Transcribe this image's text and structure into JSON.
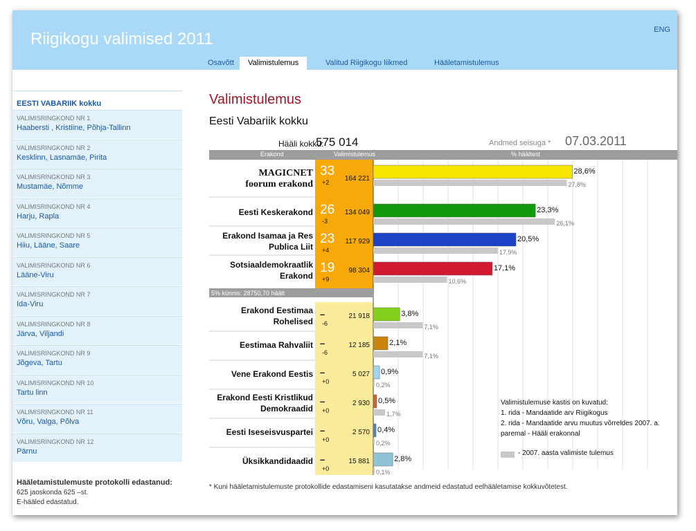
{
  "header": {
    "title": "Riigikogu valimised 2011",
    "lang_link": "ENG",
    "tabs": [
      "Osavõtt",
      "Valimistulemus",
      "Valitud Riigikogu liikmed",
      "Hääletamistulemus"
    ]
  },
  "sidebar": {
    "items": [
      {
        "sub": "",
        "name": "EESTI VABARIIK kokku"
      },
      {
        "sub": "VALIMISRINGKOND NR 1",
        "name": "Haabersti , Kristiine, Põhja-Tallinn"
      },
      {
        "sub": "VALIMISRINGKOND NR 2",
        "name": "Kesklinn, Lasnamäe, Pirita"
      },
      {
        "sub": "VALIMISRINGKOND NR 3",
        "name": "Mustamäe, Nõmme"
      },
      {
        "sub": "VALIMISRINGKOND NR 4",
        "name": "Harju, Rapla"
      },
      {
        "sub": "VALIMISRINGKOND NR 5",
        "name": "Hiiu, Lääne, Saare"
      },
      {
        "sub": "VALIMISRINGKOND NR 6",
        "name": "Lääne-Viru"
      },
      {
        "sub": "VALIMISRINGKOND NR 7",
        "name": "Ida-Viru"
      },
      {
        "sub": "VALIMISRINGKOND NR 8",
        "name": "Järva, Viljandi"
      },
      {
        "sub": "VALIMISRINGKOND NR 9",
        "name": "Jõgeva, Tartu"
      },
      {
        "sub": "VALIMISRINGKOND NR 10",
        "name": "Tartu linn"
      },
      {
        "sub": "VALIMISRINGKOND NR 11",
        "name": "Võru, Valga, Põlva"
      },
      {
        "sub": "VALIMISRINGKOND NR 12",
        "name": "Pärnu"
      }
    ],
    "footer_title": "Hääletamistulemuste protokolli edastanud:",
    "footer_line1": "625 jaoskonda 625 –st.",
    "footer_line2": "E-hääled edastatud."
  },
  "main": {
    "title": "Valimistulemus",
    "subtitle": "Eesti Vabariik kokku",
    "votes_total_label": "Hääli kokku:",
    "votes_total_value": "575 014",
    "asof_label": "Andmed seisuga *",
    "asof_value": "07.03.2011 03:24:31",
    "col_party": "Erakond",
    "col_result": "Valimistulemus",
    "col_pct": "% häältest",
    "threshold_label": "5% künnis: 28750,70 häält",
    "legend_line1": "Valimistulemuse kastis on kuvatud:",
    "legend_line2": "1. rida - Mandaatide arv Riigikogus",
    "legend_line3": "2. rida - Mandaatide arvu muutus võrreldes 2007. a.",
    "legend_line4": "paremal - Hääli erakonnal",
    "legend_prev": "- 2007. aasta valimiste tulemus",
    "footnote": "* Kuni hääletamistulemuste protokollide edastamiseni kasutatakse andmeid edastatud eelhääletamise kokkuvõtetest."
  },
  "chart_data": {
    "type": "bar",
    "orientation": "horizontal",
    "series": [
      {
        "name": "2011",
        "values": [
          28.6,
          23.3,
          20.5,
          17.1,
          3.8,
          2.1,
          0.9,
          0.5,
          0.4,
          2.8
        ]
      },
      {
        "name": "2007. aasta valimiste tulemus",
        "values": [
          27.8,
          26.1,
          17.9,
          10.6,
          7.1,
          7.1,
          0.2,
          1.7,
          0.2,
          0.1
        ]
      }
    ],
    "parties": [
      {
        "name": "MAGICNET foorum erakond",
        "seats": "33",
        "change": "+2",
        "votes": "164 221",
        "pct": "28,6%",
        "prev": "27,8%",
        "color": "#f8e600"
      },
      {
        "name": "Eesti Keskerakond",
        "seats": "26",
        "change": "-3",
        "votes": "134 049",
        "pct": "23,3%",
        "prev": "26,1%",
        "color": "#13990e"
      },
      {
        "name": "Erakond Isamaa ja Res Publica Liit",
        "seats": "23",
        "change": "+4",
        "votes": "117 929",
        "pct": "20,5%",
        "prev": "17,9%",
        "color": "#1c43c6"
      },
      {
        "name": "Sotsiaaldemokraatlik Erakond",
        "seats": "19",
        "change": "+9",
        "votes": "98 304",
        "pct": "17,1%",
        "prev": "10,6%",
        "color": "#d11a2f"
      },
      {
        "name": "Erakond Eestimaa Rohelised",
        "seats": "–",
        "change": "-6",
        "votes": "21 918",
        "pct": "3,8%",
        "prev": "7,1%",
        "color": "#83d11d"
      },
      {
        "name": "Eestimaa Rahvaliit",
        "seats": "–",
        "change": "-6",
        "votes": "12 185",
        "pct": "2,1%",
        "prev": "7,1%",
        "color": "#c9840e"
      },
      {
        "name": "Vene Erakond Eestis",
        "seats": "–",
        "change": "+0",
        "votes": "5 027",
        "pct": "0,9%",
        "prev": "0,2%",
        "color": "#9fd4f2"
      },
      {
        "name": "Erakond Eesti Kristlikud Demokraadid",
        "seats": "–",
        "change": "+0",
        "votes": "2 930",
        "pct": "0,5%",
        "prev": "1,7%",
        "color": "#d0642c"
      },
      {
        "name": "Eesti Iseseisvuspartei",
        "seats": "–",
        "change": "+0",
        "votes": "2 570",
        "pct": "0,4%",
        "prev": "0,2%",
        "color": "#4e84c4"
      },
      {
        "name": "Üksikkandidaadid",
        "seats": "–",
        "change": "+0",
        "votes": "15 881",
        "pct": "2,8%",
        "prev": "0,1%",
        "color": "#8fc3d6"
      }
    ],
    "xlim": [
      0,
      40
    ],
    "grid": true,
    "threshold_after_index": 3
  }
}
